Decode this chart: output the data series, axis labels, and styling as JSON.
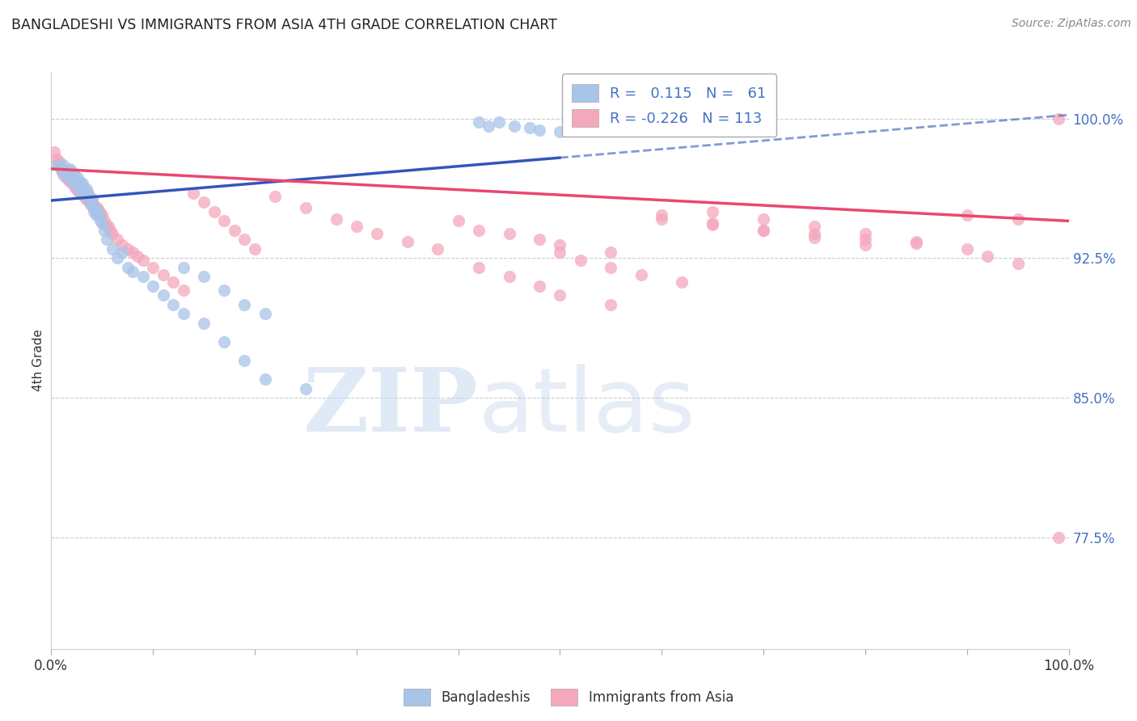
{
  "title": "BANGLADESHI VS IMMIGRANTS FROM ASIA 4TH GRADE CORRELATION CHART",
  "source": "Source: ZipAtlas.com",
  "ylabel": "4th Grade",
  "y_tick_labels": [
    "77.5%",
    "85.0%",
    "92.5%",
    "100.0%"
  ],
  "y_tick_values": [
    0.775,
    0.85,
    0.925,
    1.0
  ],
  "xlim": [
    0.0,
    1.0
  ],
  "ylim": [
    0.715,
    1.025
  ],
  "color_blue": "#a8c4e8",
  "color_pink": "#f4a8bc",
  "line_blue": "#3355bb",
  "line_pink": "#e84870",
  "background_color": "#ffffff",
  "blue_scatter_x": [
    0.005,
    0.01,
    0.012,
    0.015,
    0.016,
    0.018,
    0.02,
    0.021,
    0.022,
    0.023,
    0.025,
    0.026,
    0.027,
    0.028,
    0.03,
    0.031,
    0.032,
    0.033,
    0.034,
    0.035,
    0.036,
    0.037,
    0.038,
    0.04,
    0.041,
    0.042,
    0.043,
    0.044,
    0.045,
    0.047,
    0.048,
    0.05,
    0.052,
    0.055,
    0.06,
    0.065,
    0.07,
    0.075,
    0.08,
    0.09,
    0.1,
    0.11,
    0.12,
    0.13,
    0.15,
    0.17,
    0.19,
    0.21,
    0.25,
    0.13,
    0.15,
    0.17,
    0.19,
    0.21,
    0.42,
    0.43,
    0.44,
    0.455,
    0.47,
    0.48,
    0.5
  ],
  "blue_scatter_y": [
    0.975,
    0.972,
    0.975,
    0.97,
    0.968,
    0.973,
    0.972,
    0.968,
    0.965,
    0.97,
    0.965,
    0.968,
    0.962,
    0.966,
    0.96,
    0.965,
    0.963,
    0.96,
    0.958,
    0.962,
    0.96,
    0.958,
    0.955,
    0.957,
    0.953,
    0.95,
    0.952,
    0.948,
    0.95,
    0.948,
    0.945,
    0.944,
    0.94,
    0.935,
    0.93,
    0.925,
    0.928,
    0.92,
    0.918,
    0.915,
    0.91,
    0.905,
    0.9,
    0.895,
    0.89,
    0.88,
    0.87,
    0.86,
    0.855,
    0.92,
    0.915,
    0.908,
    0.9,
    0.895,
    0.998,
    0.996,
    0.998,
    0.996,
    0.995,
    0.994,
    0.993
  ],
  "pink_scatter_x": [
    0.003,
    0.005,
    0.007,
    0.008,
    0.009,
    0.01,
    0.011,
    0.012,
    0.013,
    0.014,
    0.015,
    0.016,
    0.017,
    0.018,
    0.019,
    0.02,
    0.021,
    0.022,
    0.023,
    0.024,
    0.025,
    0.026,
    0.027,
    0.028,
    0.029,
    0.03,
    0.031,
    0.032,
    0.033,
    0.034,
    0.035,
    0.036,
    0.037,
    0.038,
    0.039,
    0.04,
    0.041,
    0.042,
    0.043,
    0.044,
    0.045,
    0.046,
    0.047,
    0.048,
    0.05,
    0.052,
    0.054,
    0.056,
    0.058,
    0.06,
    0.065,
    0.07,
    0.075,
    0.08,
    0.085,
    0.09,
    0.1,
    0.11,
    0.12,
    0.13,
    0.14,
    0.15,
    0.16,
    0.17,
    0.18,
    0.19,
    0.2,
    0.22,
    0.25,
    0.28,
    0.3,
    0.32,
    0.35,
    0.38,
    0.4,
    0.42,
    0.45,
    0.48,
    0.5,
    0.55,
    0.6,
    0.65,
    0.7,
    0.75,
    0.8,
    0.85,
    0.9,
    0.95,
    0.99,
    0.42,
    0.45,
    0.48,
    0.5,
    0.55,
    0.6,
    0.65,
    0.7,
    0.75,
    0.8,
    0.5,
    0.52,
    0.55,
    0.58,
    0.62,
    0.65,
    0.7,
    0.75,
    0.8,
    0.85,
    0.9,
    0.92,
    0.95,
    0.99
  ],
  "pink_scatter_y": [
    0.982,
    0.978,
    0.975,
    0.977,
    0.974,
    0.973,
    0.972,
    0.97,
    0.971,
    0.969,
    0.968,
    0.97,
    0.967,
    0.968,
    0.966,
    0.967,
    0.965,
    0.966,
    0.964,
    0.963,
    0.962,
    0.963,
    0.961,
    0.962,
    0.96,
    0.961,
    0.959,
    0.96,
    0.958,
    0.957,
    0.958,
    0.956,
    0.957,
    0.955,
    0.954,
    0.955,
    0.953,
    0.952,
    0.953,
    0.951,
    0.952,
    0.95,
    0.951,
    0.949,
    0.948,
    0.945,
    0.943,
    0.942,
    0.94,
    0.938,
    0.935,
    0.932,
    0.93,
    0.928,
    0.926,
    0.924,
    0.92,
    0.916,
    0.912,
    0.908,
    0.96,
    0.955,
    0.95,
    0.945,
    0.94,
    0.935,
    0.93,
    0.958,
    0.952,
    0.946,
    0.942,
    0.938,
    0.934,
    0.93,
    0.945,
    0.94,
    0.938,
    0.935,
    0.932,
    0.928,
    0.946,
    0.943,
    0.94,
    0.938,
    0.935,
    0.933,
    0.948,
    0.946,
    1.0,
    0.92,
    0.915,
    0.91,
    0.905,
    0.9,
    0.948,
    0.944,
    0.94,
    0.936,
    0.932,
    0.928,
    0.924,
    0.92,
    0.916,
    0.912,
    0.95,
    0.946,
    0.942,
    0.938,
    0.934,
    0.93,
    0.926,
    0.922,
    0.775
  ],
  "blue_line_x": [
    0.0,
    0.5,
    1.0
  ],
  "blue_line_y_start": 0.956,
  "blue_line_y_mid": 0.979,
  "blue_line_y_end": 1.002,
  "pink_line_x_start": 0.0,
  "pink_line_x_end": 1.0,
  "pink_line_y_start": 0.973,
  "pink_line_y_end": 0.945
}
